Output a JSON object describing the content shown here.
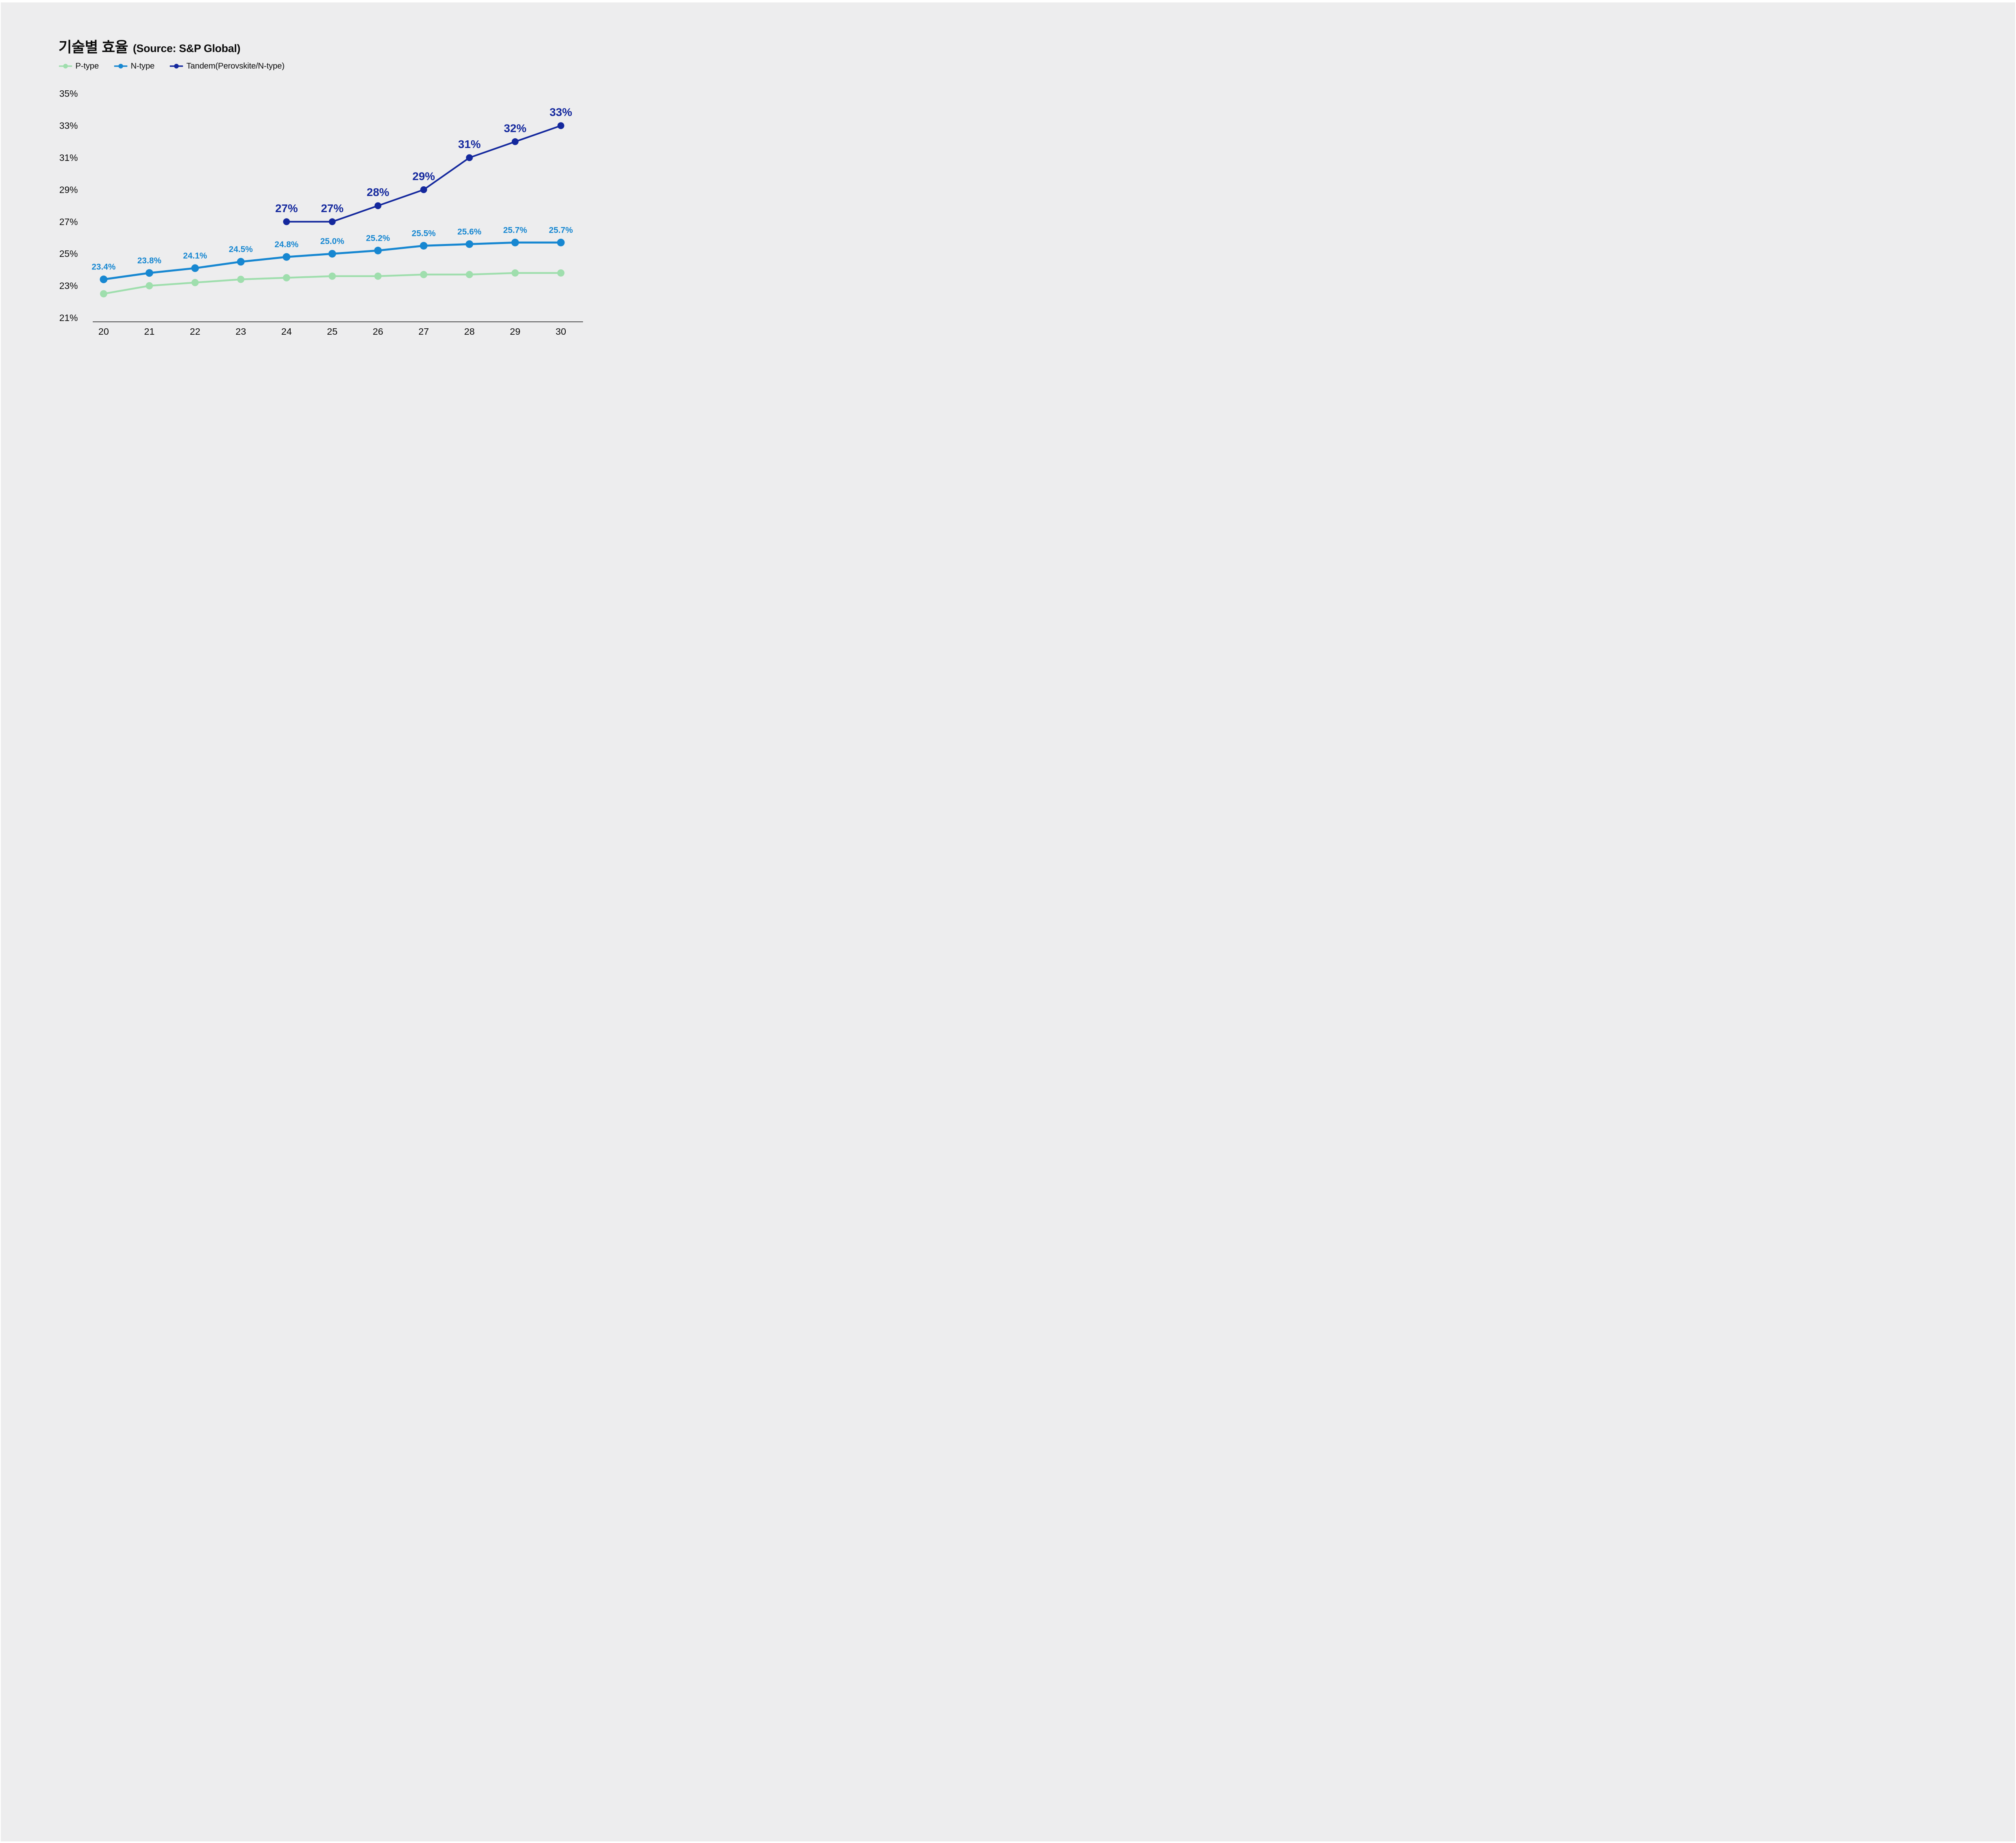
{
  "header": {
    "title": "기술별 효율",
    "source": "(Source: S&P Global)"
  },
  "legend": {
    "items": [
      {
        "label": "P-type",
        "color": "#9FDEAD"
      },
      {
        "label": "N-type",
        "color": "#1787D1"
      },
      {
        "label": "Tandem(Perovskite/N-type)",
        "color": "#14289D"
      }
    ]
  },
  "chart_data": {
    "type": "line",
    "title": "기술별 효율 (Source: S&P Global)",
    "x": [
      "20",
      "21",
      "22",
      "23",
      "24",
      "25",
      "26",
      "27",
      "28",
      "29",
      "30"
    ],
    "series": [
      {
        "name": "P-type",
        "color": "#9FDEAD",
        "values": [
          22.5,
          23.0,
          23.2,
          23.4,
          23.5,
          23.6,
          23.6,
          23.7,
          23.7,
          23.8,
          23.8
        ],
        "point_labels": [
          null,
          null,
          null,
          null,
          null,
          null,
          null,
          null,
          null,
          null,
          null
        ]
      },
      {
        "name": "N-type",
        "color": "#1787D1",
        "values": [
          23.4,
          23.8,
          24.1,
          24.5,
          24.8,
          25.0,
          25.2,
          25.5,
          25.6,
          25.7,
          25.7
        ],
        "point_labels": [
          "23.4%",
          "23.8%",
          "24.1%",
          "24.5%",
          "24.8%",
          "25.0%",
          "25.2%",
          "25.5%",
          "25.6%",
          "25.7%",
          "25.7%"
        ]
      },
      {
        "name": "Tandem(Perovskite/N-type)",
        "color": "#14289D",
        "values": [
          null,
          null,
          null,
          null,
          27,
          27,
          28,
          29,
          31,
          32,
          33
        ],
        "point_labels": [
          null,
          null,
          null,
          null,
          "27%",
          "27%",
          "28%",
          "29%",
          "31%",
          "32%",
          "33%"
        ]
      }
    ],
    "yticks": [
      35,
      33,
      31,
      29,
      27,
      25,
      23,
      21
    ],
    "ytick_labels": [
      "35%",
      "33%",
      "31%",
      "29%",
      "27%",
      "25%",
      "23%",
      "21%"
    ],
    "ylim": [
      20.8,
      35.6
    ],
    "xlabel": "",
    "ylabel": "",
    "grid": false,
    "legend_position": "top-left"
  },
  "colors": {
    "background": "#EDEDEE",
    "page_border": "#FFFFFF",
    "text": "#0A0A0A",
    "axis_line": "#1A1A1A"
  }
}
